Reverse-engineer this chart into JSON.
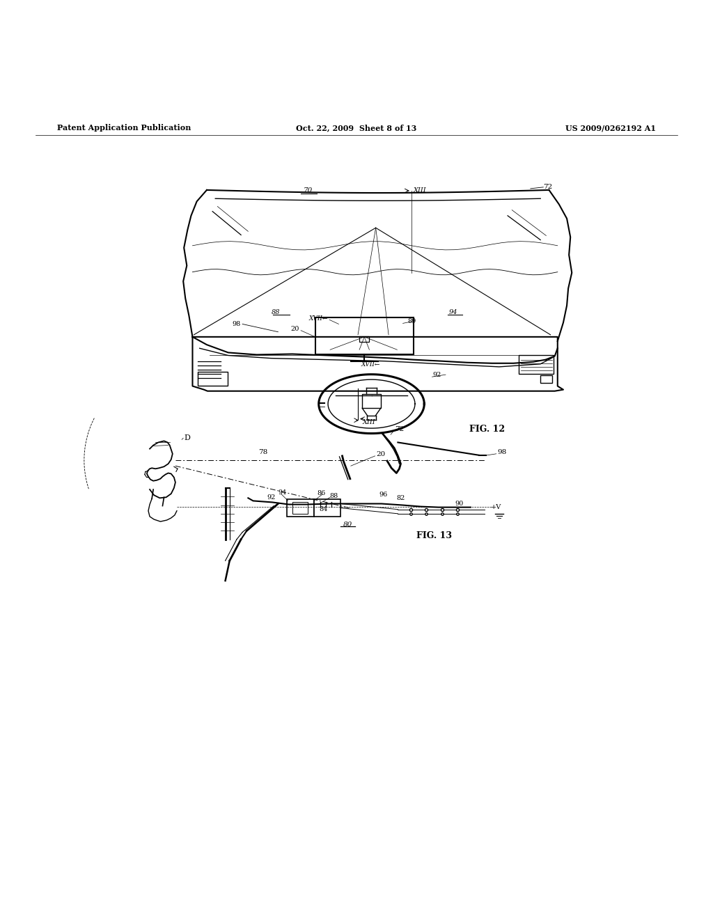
{
  "bg_color": "#ffffff",
  "line_color": "#000000",
  "header_left": "Patent Application Publication",
  "header_mid": "Oct. 22, 2009  Sheet 8 of 13",
  "header_right": "US 2009/0262192 A1",
  "fig12_label": "FIG. 12",
  "fig13_label": "FIG. 13"
}
